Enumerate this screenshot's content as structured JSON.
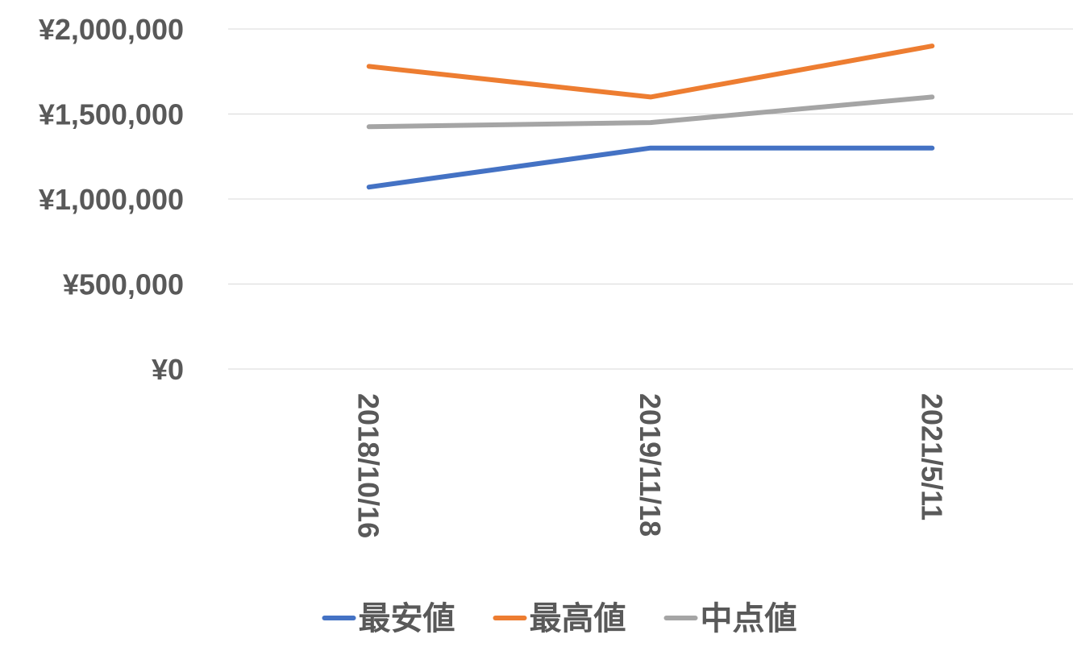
{
  "chart_data": {
    "type": "line",
    "title": "",
    "xlabel": "",
    "ylabel": "",
    "categories": [
      "2018/10/16",
      "2019/11/18",
      "2021/5/11"
    ],
    "y_ticks": [
      "¥0",
      "¥500,000",
      "¥1,000,000",
      "¥1,500,000",
      "¥2,000,000"
    ],
    "ylim": [
      0,
      2000000
    ],
    "grid": true,
    "legend_position": "bottom",
    "series": [
      {
        "name": "最安値",
        "color": "#4472C4",
        "values": [
          1070000,
          1300000,
          1300000
        ]
      },
      {
        "name": "最高値",
        "color": "#ED7D31",
        "values": [
          1780000,
          1600000,
          1900000
        ]
      },
      {
        "name": "中点値",
        "color": "#A5A5A5",
        "values": [
          1425000,
          1450000,
          1600000
        ]
      }
    ]
  }
}
